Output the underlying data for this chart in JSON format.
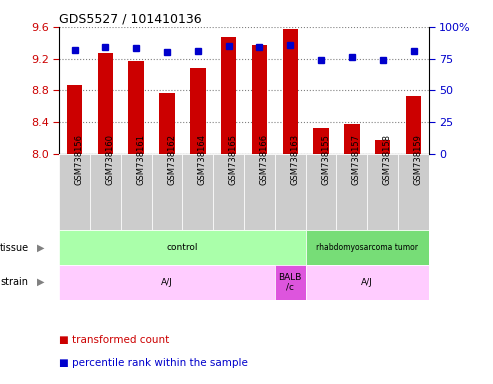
{
  "title": "GDS5527 / 101410136",
  "samples": [
    "GSM738156",
    "GSM738160",
    "GSM738161",
    "GSM738162",
    "GSM738164",
    "GSM738165",
    "GSM738166",
    "GSM738163",
    "GSM738155",
    "GSM738157",
    "GSM738158",
    "GSM738159"
  ],
  "transformed_count": [
    8.87,
    9.27,
    9.17,
    8.77,
    9.08,
    9.47,
    9.37,
    9.57,
    8.32,
    8.37,
    8.17,
    8.73
  ],
  "percentile_rank": [
    82,
    84,
    83,
    80,
    81,
    85,
    84,
    86,
    74,
    76,
    74,
    81
  ],
  "ylim_left": [
    8.0,
    9.6
  ],
  "ylim_right": [
    0,
    100
  ],
  "yticks_left": [
    8.0,
    8.4,
    8.8,
    9.2,
    9.6
  ],
  "yticks_right": [
    0,
    25,
    50,
    75,
    100
  ],
  "bar_color": "#cc0000",
  "dot_color": "#0000cc",
  "tissue_data": [
    {
      "label": "control",
      "start": 0,
      "end": 8,
      "color": "#aaffaa"
    },
    {
      "label": "rhabdomyosarcoma tumor",
      "start": 8,
      "end": 12,
      "color": "#77dd77"
    }
  ],
  "strain_data": [
    {
      "label": "A/J",
      "start": 0,
      "end": 7,
      "color": "#ffccff"
    },
    {
      "label": "BALB\n/c",
      "start": 7,
      "end": 8,
      "color": "#dd55dd"
    },
    {
      "label": "A/J",
      "start": 8,
      "end": 12,
      "color": "#ffccff"
    }
  ],
  "bar_width": 0.5,
  "tick_bg_color": "#cccccc",
  "legend_red_label": "transformed count",
  "legend_blue_label": "percentile rank within the sample"
}
